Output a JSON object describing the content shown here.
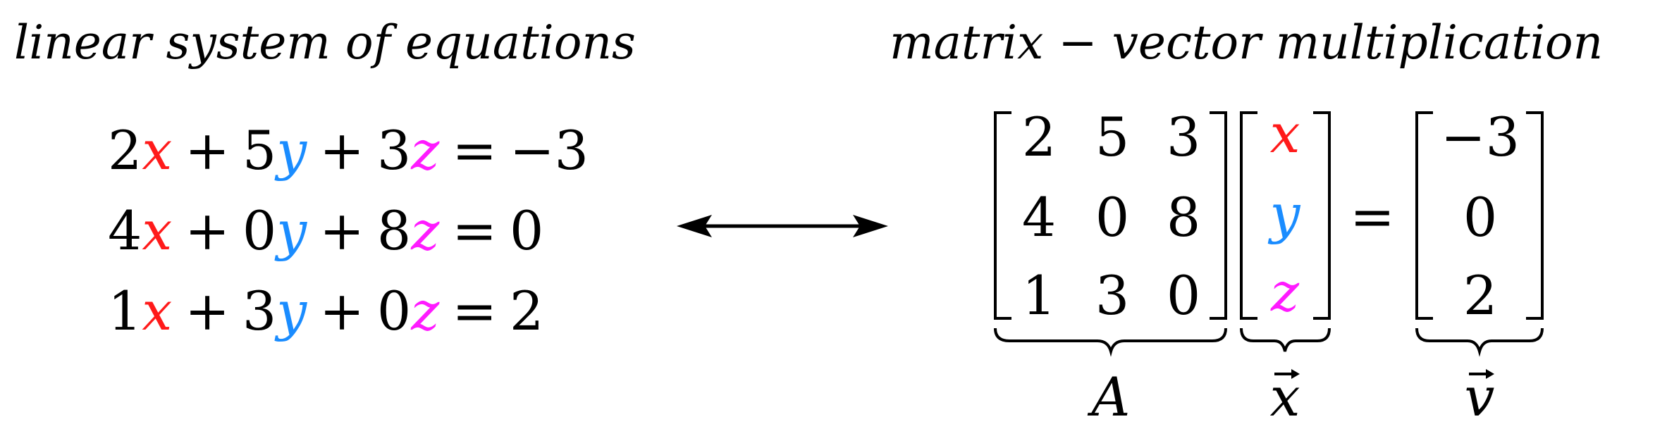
{
  "headings": {
    "left": "linear system of equations",
    "right": "matrix − vector multiplication"
  },
  "colors": {
    "x": "#ff1a1a",
    "y": "#1a8cff",
    "z": "#ff1aff",
    "text": "#000000"
  },
  "equations": [
    {
      "c1": "2",
      "c2": "5",
      "c3": "3",
      "rhs": "−3"
    },
    {
      "c1": "4",
      "c2": "0",
      "c3": "8",
      "rhs": "0"
    },
    {
      "c1": "1",
      "c2": "3",
      "c3": "0",
      "rhs": "2"
    }
  ],
  "vars": {
    "x": "x",
    "y": "y",
    "z": "z"
  },
  "ops": {
    "plus": "+",
    "equals": "="
  },
  "arrow_icon": "double-arrow-icon",
  "matrix_A": [
    [
      "2",
      "5",
      "3"
    ],
    [
      "4",
      "0",
      "8"
    ],
    [
      "1",
      "3",
      "0"
    ]
  ],
  "vector_x": [
    "x",
    "y",
    "z"
  ],
  "vector_v": [
    "−3",
    "0",
    "2"
  ],
  "labels": {
    "A": "A",
    "x_vec": "x",
    "v_vec": "v"
  }
}
